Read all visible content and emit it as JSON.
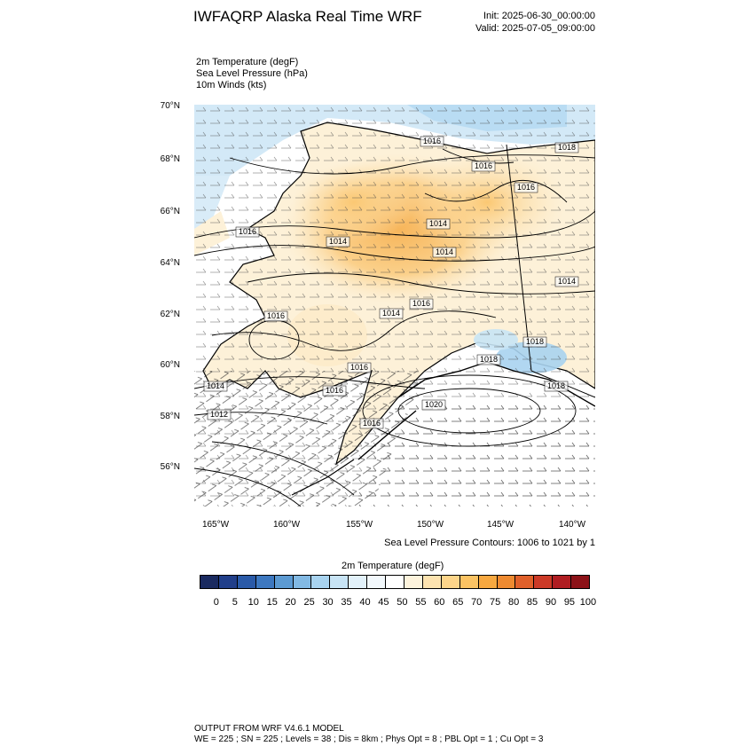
{
  "header": {
    "title": "IWFAQRP Alaska Real Time WRF",
    "init": "Init: 2025-06-30_00:00:00",
    "valid": "Valid: 2025-07-05_09:00:00"
  },
  "fields": [
    "2m Temperature   (degF)",
    "Sea Level Pressure   (hPa)",
    "10m Winds   (kts)"
  ],
  "axes": {
    "lat_labels": [
      "70°N",
      "68°N",
      "66°N",
      "64°N",
      "62°N",
      "60°N",
      "58°N",
      "56°N"
    ],
    "lon_labels": [
      "165°W",
      "160°W",
      "155°W",
      "150°W",
      "145°W",
      "140°W"
    ]
  },
  "pressure_labels": [
    "1016",
    "1018",
    "1016",
    "1016",
    "1016",
    "1014",
    "1014",
    "1014",
    "1014",
    "1014",
    "1016",
    "1016",
    "1016",
    "1016",
    "1014",
    "1012",
    "1018",
    "1020",
    "1016",
    "1018",
    "1018"
  ],
  "contour_note": "Sea Level Pressure Contours: 1006 to 1021 by 1",
  "colorbar": {
    "title": "2m Temperature  (degF)",
    "labels": [
      "0",
      "5",
      "10",
      "15",
      "20",
      "25",
      "30",
      "35",
      "40",
      "45",
      "50",
      "55",
      "60",
      "65",
      "70",
      "75",
      "80",
      "85",
      "90",
      "95",
      "100"
    ],
    "colors": [
      "#1a2a60",
      "#213f8a",
      "#2a5aa8",
      "#3d78c0",
      "#5c9ad2",
      "#82b9e3",
      "#a8d3ef",
      "#c8e4f5",
      "#e2f1fa",
      "#f2f8fc",
      "#ffffff",
      "#fdf3dc",
      "#fde3b0",
      "#fdd58a",
      "#fbc363",
      "#f7a840",
      "#ee8a30",
      "#e0602a",
      "#cc3a27",
      "#b01d22",
      "#8c1218"
    ]
  },
  "footer": {
    "line1": "OUTPUT FROM WRF V4.6.1 MODEL",
    "line2": "WE = 225 ; SN = 225 ; Levels = 38 ; Dis = 8km ; Phys Opt = 8 ; PBL Opt = 1 ; Cu Opt = 3"
  }
}
